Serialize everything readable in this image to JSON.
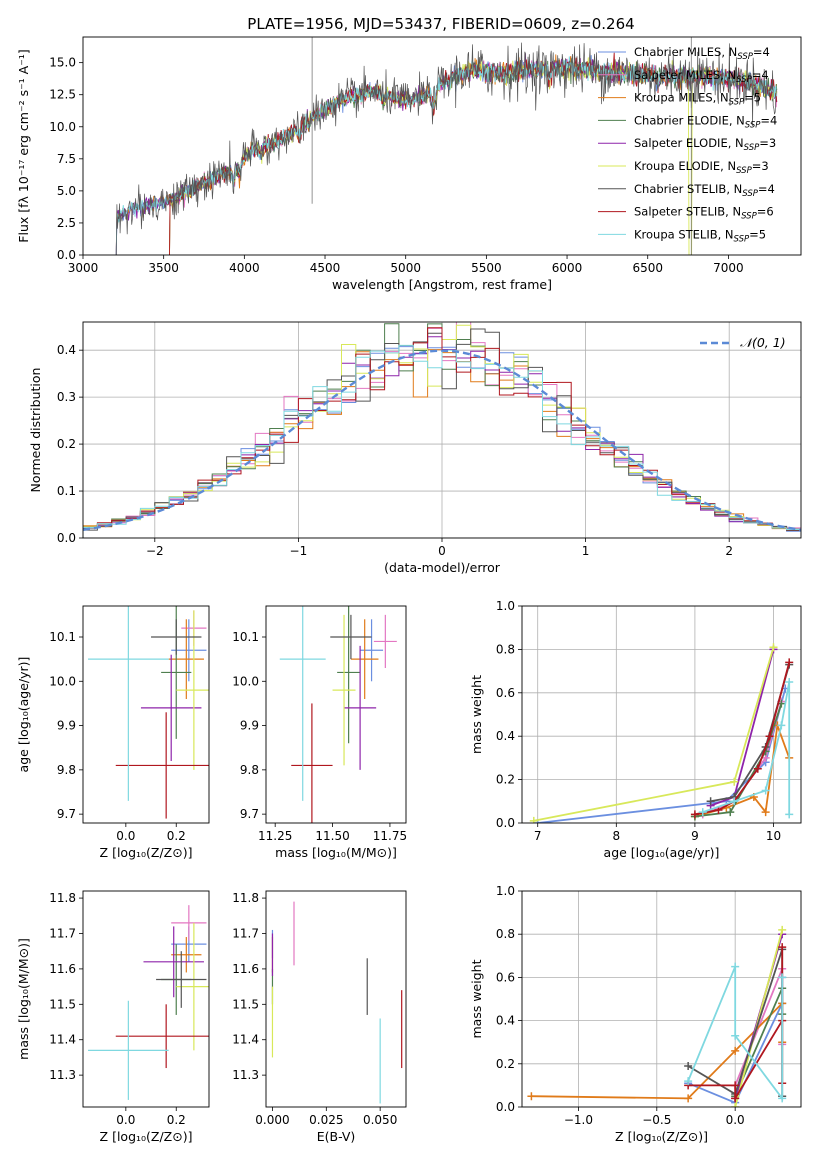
{
  "figure_title": "PLATE=1956, MJD=53437, FIBERID=0609, z=0.264",
  "models": [
    {
      "name": "Chabrier MILES",
      "nssp": "4",
      "color": "#6b8fe0"
    },
    {
      "name": "Salpeter MILES",
      "nssp": "4",
      "color": "#e377c2"
    },
    {
      "name": "Kroupa MILES",
      "nssp": "5",
      "color": "#e07b1a"
    },
    {
      "name": "Chabrier ELODIE",
      "nssp": "4",
      "color": "#4f7f4f"
    },
    {
      "name": "Salpeter ELODIE",
      "nssp": "3",
      "color": "#8e24aa"
    },
    {
      "name": "Kroupa ELODIE",
      "nssp": "3",
      "color": "#d8e85a"
    },
    {
      "name": "Chabrier STELIB",
      "nssp": "4",
      "color": "#555555"
    },
    {
      "name": "Salpeter STELIB",
      "nssp": "6",
      "color": "#b0171f"
    },
    {
      "name": "Kroupa STELIB",
      "nssp": "5",
      "color": "#7fd8e0"
    }
  ],
  "chart_data": [
    {
      "id": "spectrum",
      "type": "line",
      "title": "PLATE=1956, MJD=53437, FIBERID=0609, z=0.264",
      "xlabel": "wavelength [Angstrom, rest frame]",
      "ylabel": "Flux [fλ 10⁻¹⁷ erg cm⁻² s⁻¹ A⁻¹]",
      "xlim": [
        3000,
        7450
      ],
      "ylim": [
        0,
        17
      ],
      "xticks": [
        "3000",
        "3500",
        "4000",
        "4500",
        "5000",
        "5500",
        "6000",
        "6500",
        "7000"
      ],
      "yticks": [
        "0.0",
        "2.5",
        "5.0",
        "7.5",
        "10.0",
        "12.5",
        "15.0"
      ],
      "continuum": {
        "x": [
          3210,
          3300,
          3450,
          3550,
          3700,
          3850,
          3950,
          4050,
          4200,
          4350,
          4500,
          4650,
          4800,
          5000,
          5150,
          5250,
          5400,
          5600,
          5800,
          6000,
          6300,
          6600,
          6900,
          7100,
          7300
        ],
        "y": [
          3.0,
          3.6,
          4.0,
          4.3,
          5.3,
          6.2,
          7.0,
          8.2,
          8.8,
          10.0,
          11.4,
          12.3,
          12.8,
          12.0,
          12.6,
          13.7,
          14.4,
          14.2,
          14.5,
          14.6,
          14.2,
          14.0,
          13.9,
          13.6,
          12.6
        ]
      },
      "model_start_wavelengths": [
        3210,
        3540,
        3210,
        3540,
        3210,
        3540,
        3210,
        3540,
        3210
      ],
      "legend": "upper right"
    },
    {
      "id": "residuals",
      "type": "histogram",
      "xlabel": "(data-model)/error",
      "ylabel": "Normed distribution",
      "xlim": [
        -2.5,
        2.5
      ],
      "ylim": [
        0,
        0.46
      ],
      "xticks": [
        "−2",
        "−1",
        "0",
        "1",
        "2"
      ],
      "yticks": [
        "0.0",
        "0.1",
        "0.2",
        "0.3",
        "0.4"
      ],
      "bin_width": 0.1,
      "reference": {
        "label": "𝒩(0, 1)",
        "mean": 0,
        "sigma": 1,
        "color": "#5b8ad6"
      },
      "legend": "upper right",
      "grid": true
    },
    {
      "id": "age-vs-Z",
      "type": "errorbar",
      "xlabel": "Z [log₁₀(Z/Z⊙)]",
      "ylabel": "age  [log₁₀(age/yr)]",
      "xlim": [
        -0.17,
        0.33
      ],
      "ylim": [
        9.68,
        10.17
      ],
      "xticks": [
        "0.0",
        "0.2"
      ],
      "yticks": [
        "9.7",
        "9.8",
        "9.9",
        "10.0",
        "10.1"
      ],
      "points": [
        {
          "x": 0.25,
          "y": 10.07,
          "xerr": 0.07,
          "yerr": 0.07
        },
        {
          "x": 0.27,
          "y": 10.12,
          "xerr": 0.05,
          "yerr": 0.04
        },
        {
          "x": 0.24,
          "y": 10.05,
          "xerr": 0.07,
          "yerr": 0.09
        },
        {
          "x": 0.2,
          "y": 10.02,
          "xerr": 0.06,
          "yerr": 0.15
        },
        {
          "x": 0.18,
          "y": 9.94,
          "xerr": 0.12,
          "yerr": 0.12
        },
        {
          "x": 0.27,
          "y": 9.98,
          "xerr": 0.07,
          "yerr": 0.18
        },
        {
          "x": 0.2,
          "y": 10.1,
          "xerr": 0.1,
          "yerr": 0.04
        },
        {
          "x": 0.16,
          "y": 9.81,
          "xerr": 0.2,
          "yerr": 0.12
        },
        {
          "x": 0.01,
          "y": 10.05,
          "xerr": 0.16,
          "yerr": 0.32
        }
      ]
    },
    {
      "id": "age-vs-mass",
      "type": "errorbar",
      "xlabel": "mass [log₁₀(M/M⊙)]",
      "ylabel": "",
      "xlim": [
        11.21,
        11.82
      ],
      "ylim": [
        9.68,
        10.17
      ],
      "xticks": [
        "11.25",
        "11.50",
        "11.75"
      ],
      "yticks": [
        "9.7",
        "9.8",
        "9.9",
        "10.0",
        "10.1"
      ],
      "points": [
        {
          "x": 11.67,
          "y": 10.07,
          "xerr": 0.05,
          "yerr": 0.07
        },
        {
          "x": 11.73,
          "y": 10.09,
          "xerr": 0.05,
          "yerr": 0.06
        },
        {
          "x": 11.64,
          "y": 10.05,
          "xerr": 0.06,
          "yerr": 0.09
        },
        {
          "x": 11.57,
          "y": 10.02,
          "xerr": 0.05,
          "yerr": 0.16
        },
        {
          "x": 11.62,
          "y": 9.94,
          "xerr": 0.07,
          "yerr": 0.14
        },
        {
          "x": 11.55,
          "y": 9.98,
          "xerr": 0.05,
          "yerr": 0.17
        },
        {
          "x": 11.58,
          "y": 10.1,
          "xerr": 0.09,
          "yerr": 0.05
        },
        {
          "x": 11.41,
          "y": 9.81,
          "xerr": 0.09,
          "yerr": 0.14
        },
        {
          "x": 11.37,
          "y": 10.05,
          "xerr": 0.1,
          "yerr": 0.32
        }
      ]
    },
    {
      "id": "mass-weight-vs-age",
      "type": "line",
      "xlabel": "age  [log₁₀(age/yr)]",
      "ylabel": "mass weight",
      "xlim": [
        6.8,
        10.35
      ],
      "ylim": [
        0,
        1
      ],
      "xticks": [
        "7",
        "8",
        "9",
        "10"
      ],
      "yticks": [
        "0.0",
        "0.2",
        "0.4",
        "0.6",
        "0.8",
        "1.0"
      ],
      "grid": true,
      "series": [
        {
          "x": [
            7.0,
            9.4,
            9.9,
            10.15
          ],
          "y": [
            0.0,
            0.1,
            0.28,
            0.62
          ]
        },
        {
          "x": [
            9.1,
            9.5,
            9.9,
            10.1
          ],
          "y": [
            0.04,
            0.1,
            0.3,
            0.56
          ]
        },
        {
          "x": [
            9.0,
            9.4,
            9.75,
            9.9,
            10.05,
            10.2
          ],
          "y": [
            0.03,
            0.07,
            0.12,
            0.05,
            0.45,
            0.3
          ]
        },
        {
          "x": [
            9.0,
            9.45,
            9.9,
            10.1
          ],
          "y": [
            0.03,
            0.05,
            0.33,
            0.55
          ]
        },
        {
          "x": [
            9.2,
            9.5,
            10.0
          ],
          "y": [
            0.08,
            0.12,
            0.8
          ]
        },
        {
          "x": [
            6.95,
            9.5,
            10.0
          ],
          "y": [
            0.01,
            0.19,
            0.81
          ]
        },
        {
          "x": [
            9.2,
            9.5,
            9.9,
            10.2
          ],
          "y": [
            0.1,
            0.12,
            0.35,
            0.73
          ]
        },
        {
          "x": [
            9.0,
            9.3,
            9.5,
            9.8,
            9.95,
            10.2
          ],
          "y": [
            0.04,
            0.06,
            0.1,
            0.25,
            0.4,
            0.74
          ]
        },
        {
          "x": [
            9.1,
            9.5,
            9.9,
            10.1,
            10.2,
            10.2
          ],
          "y": [
            0.05,
            0.1,
            0.15,
            0.45,
            0.65,
            0.04
          ]
        }
      ]
    },
    {
      "id": "mass-vs-Z",
      "type": "errorbar",
      "xlabel": "Z [log₁₀(Z/Z⊙)]",
      "ylabel": "mass [log₁₀(M/M⊙)]",
      "xlim": [
        -0.17,
        0.33
      ],
      "ylim": [
        11.21,
        11.82
      ],
      "xticks": [
        "0.0",
        "0.2"
      ],
      "yticks": [
        "11.3",
        "11.4",
        "11.5",
        "11.6",
        "11.7",
        "11.8"
      ],
      "points": [
        {
          "x": 0.25,
          "y": 11.67,
          "xerr": 0.07,
          "yerr": 0.05
        },
        {
          "x": 0.25,
          "y": 11.73,
          "xerr": 0.07,
          "yerr": 0.05
        },
        {
          "x": 0.24,
          "y": 11.64,
          "xerr": 0.06,
          "yerr": 0.05
        },
        {
          "x": 0.2,
          "y": 11.57,
          "xerr": 0.06,
          "yerr": 0.1
        },
        {
          "x": 0.19,
          "y": 11.62,
          "xerr": 0.12,
          "yerr": 0.1
        },
        {
          "x": 0.27,
          "y": 11.55,
          "xerr": 0.07,
          "yerr": 0.18
        },
        {
          "x": 0.22,
          "y": 11.57,
          "xerr": 0.1,
          "yerr": 0.08
        },
        {
          "x": 0.16,
          "y": 11.41,
          "xerr": 0.2,
          "yerr": 0.09
        },
        {
          "x": 0.01,
          "y": 11.37,
          "xerr": 0.16,
          "yerr": 0.14
        }
      ]
    },
    {
      "id": "mass-vs-EBV",
      "type": "errorbar",
      "xlabel": "E(B-V)",
      "ylabel": "",
      "xlim": [
        -0.003,
        0.062
      ],
      "ylim": [
        11.21,
        11.82
      ],
      "xticks": [
        "0.000",
        "0.025",
        "0.050"
      ],
      "yticks": [
        "11.3",
        "11.4",
        "11.5",
        "11.6",
        "11.7",
        "11.8"
      ],
      "points": [
        {
          "x": 0.0,
          "y": 11.67,
          "xerr": 0,
          "yerr": 0.04
        },
        {
          "x": 0.01,
          "y": 11.7,
          "xerr": 0,
          "yerr": 0.09
        },
        {
          "x": 0.0,
          "y": 11.64,
          "xerr": 0,
          "yerr": 0.05
        },
        {
          "x": 0.0,
          "y": 11.55,
          "xerr": 0,
          "yerr": 0.05
        },
        {
          "x": 0.0,
          "y": 11.64,
          "xerr": 0,
          "yerr": 0.06
        },
        {
          "x": 0.0,
          "y": 11.45,
          "xerr": 0,
          "yerr": 0.1
        },
        {
          "x": 0.044,
          "y": 11.55,
          "xerr": 0,
          "yerr": 0.08
        },
        {
          "x": 0.06,
          "y": 11.43,
          "xerr": 0,
          "yerr": 0.11
        },
        {
          "x": 0.05,
          "y": 11.34,
          "xerr": 0,
          "yerr": 0.12
        }
      ]
    },
    {
      "id": "mass-weight-vs-Z",
      "type": "line",
      "xlabel": "Z [log₁₀(Z/Z⊙)]",
      "ylabel": "mass weight",
      "xlim": [
        -1.36,
        0.42
      ],
      "ylim": [
        0,
        1
      ],
      "xticks": [
        "−1.0",
        "−0.5",
        "0.0"
      ],
      "yticks": [
        "0.0",
        "0.2",
        "0.4",
        "0.6",
        "0.8",
        "1.0"
      ],
      "grid": true,
      "series": [
        {
          "x": [
            -0.3,
            0.0,
            0.3,
            0.3
          ],
          "y": [
            0.11,
            0.02,
            0.48,
            0.6
          ]
        },
        {
          "x": [
            0.0,
            0.3,
            0.3
          ],
          "y": [
            0.1,
            0.64,
            0.29
          ]
        },
        {
          "x": [
            -1.3,
            -0.3,
            0.0,
            0.3,
            0.3
          ],
          "y": [
            0.05,
            0.04,
            0.26,
            0.48,
            0.3
          ]
        },
        {
          "x": [
            0.0,
            0.3,
            0.3
          ],
          "y": [
            0.05,
            0.55,
            0.43
          ]
        },
        {
          "x": [
            0.0,
            0.3
          ],
          "y": [
            0.04,
            0.8
          ]
        },
        {
          "x": [
            0.0,
            0.3
          ],
          "y": [
            0.0,
            0.82
          ]
        },
        {
          "x": [
            -0.3,
            0.0,
            0.3,
            0.3
          ],
          "y": [
            0.19,
            0.06,
            0.73,
            0.05
          ]
        },
        {
          "x": [
            -0.3,
            0.0,
            0.0,
            0.3,
            0.3,
            0.3
          ],
          "y": [
            0.1,
            0.1,
            0.04,
            0.4,
            0.74,
            0.11
          ]
        },
        {
          "x": [
            -0.3,
            0.0,
            0.0,
            0.3,
            0.3
          ],
          "y": [
            0.12,
            0.65,
            0.33,
            0.04,
            0.6
          ]
        }
      ]
    }
  ]
}
